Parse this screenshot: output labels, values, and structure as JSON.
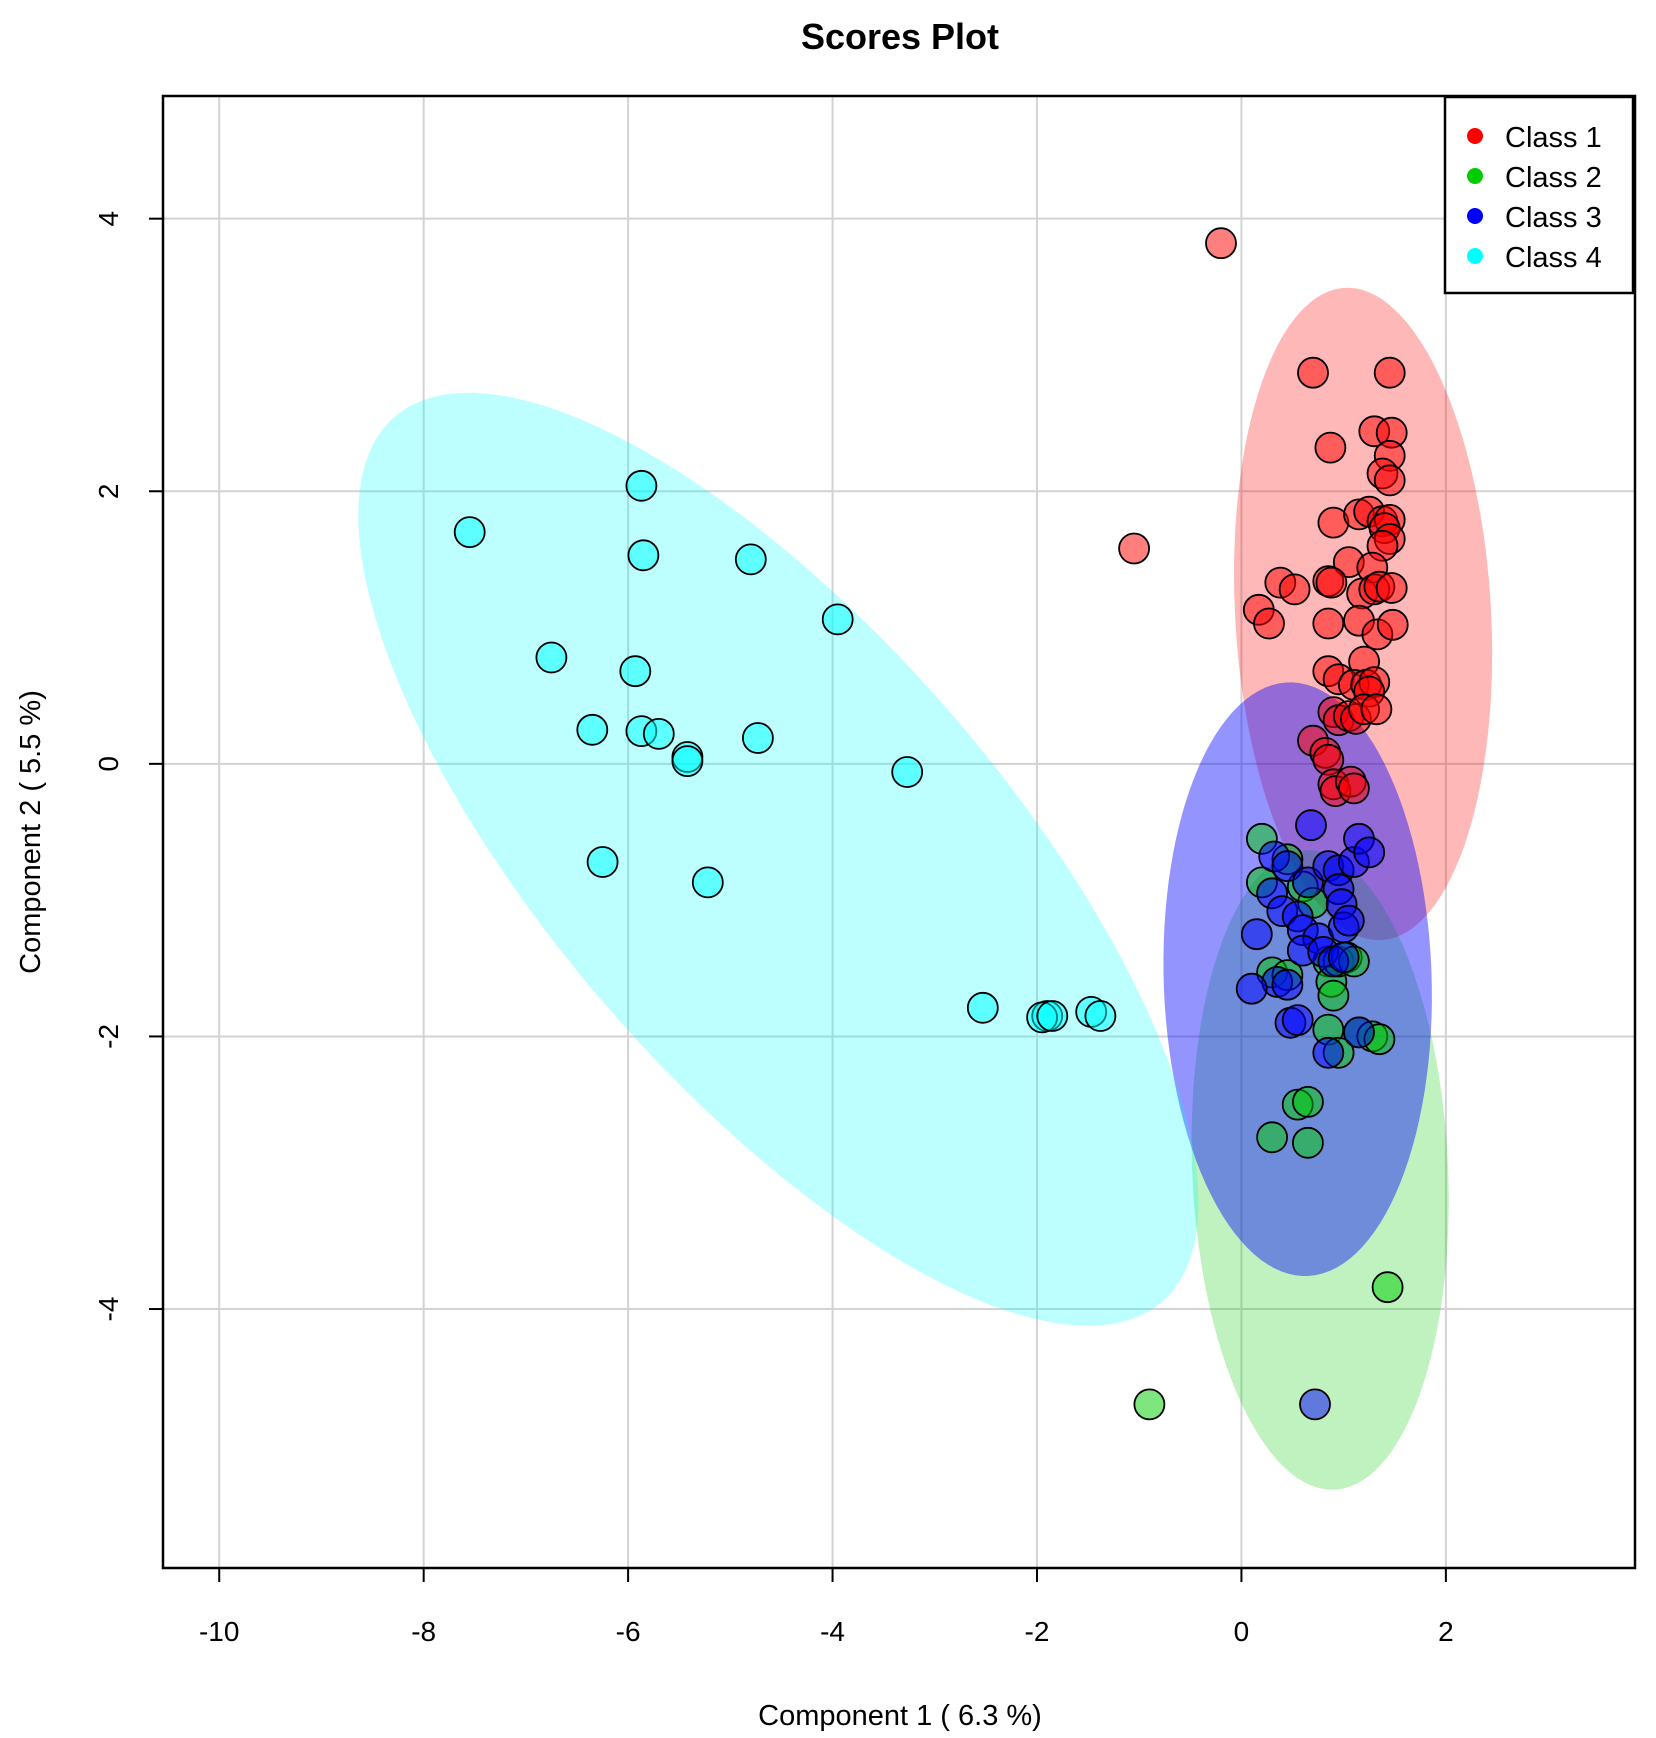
{
  "chart_data": {
    "type": "scatter",
    "title": "Scores Plot",
    "xlabel": "Component 1 ( 6.3 %)",
    "ylabel": "Component 2 ( 5.5 %)",
    "xlim": [
      -10.55,
      3.85
    ],
    "ylim": [
      -5.9,
      4.9
    ],
    "xticks": [
      -10,
      -8,
      -6,
      -4,
      -2,
      0,
      2
    ],
    "xtick_labels": [
      "-10",
      "-8",
      "-6",
      "-4",
      "-2",
      "0",
      "2"
    ],
    "yticks": [
      -4,
      -2,
      0,
      2,
      4
    ],
    "ytick_labels": [
      "-4",
      "-2",
      "0",
      "2",
      "4"
    ],
    "grid": true,
    "legend_position": "top-right",
    "series": [
      {
        "name": "Class 1",
        "color": "#ff0000",
        "ellipse": {
          "cx": 1.19,
          "cy": 1.1,
          "rx": 1.25,
          "ry": 2.4,
          "angle": 5
        },
        "points": [
          [
            -0.2,
            3.82
          ],
          [
            -1.05,
            1.58
          ],
          [
            0.7,
            2.87
          ],
          [
            1.45,
            2.87
          ],
          [
            0.87,
            2.32
          ],
          [
            1.3,
            2.44
          ],
          [
            1.47,
            2.43
          ],
          [
            1.45,
            2.26
          ],
          [
            1.38,
            2.13
          ],
          [
            1.45,
            2.08
          ],
          [
            0.9,
            1.77
          ],
          [
            1.15,
            1.83
          ],
          [
            1.25,
            1.85
          ],
          [
            1.38,
            1.78
          ],
          [
            1.45,
            1.79
          ],
          [
            1.4,
            1.73
          ],
          [
            1.45,
            1.65
          ],
          [
            1.38,
            1.6
          ],
          [
            1.05,
            1.48
          ],
          [
            1.28,
            1.44
          ],
          [
            0.38,
            1.33
          ],
          [
            0.52,
            1.28
          ],
          [
            0.85,
            1.34
          ],
          [
            0.88,
            1.33
          ],
          [
            1.18,
            1.25
          ],
          [
            1.3,
            1.28
          ],
          [
            1.35,
            1.3
          ],
          [
            1.47,
            1.29
          ],
          [
            0.17,
            1.13
          ],
          [
            0.27,
            1.03
          ],
          [
            0.85,
            1.03
          ],
          [
            1.15,
            1.05
          ],
          [
            1.33,
            0.95
          ],
          [
            1.48,
            1.02
          ],
          [
            0.85,
            0.68
          ],
          [
            0.95,
            0.62
          ],
          [
            1.2,
            0.75
          ],
          [
            1.1,
            0.58
          ],
          [
            1.22,
            0.58
          ],
          [
            1.3,
            0.6
          ],
          [
            1.25,
            0.53
          ],
          [
            0.9,
            0.38
          ],
          [
            0.95,
            0.32
          ],
          [
            1.05,
            0.35
          ],
          [
            1.12,
            0.33
          ],
          [
            1.2,
            0.4
          ],
          [
            1.32,
            0.4
          ],
          [
            0.7,
            0.17
          ],
          [
            0.82,
            0.08
          ],
          [
            0.85,
            0.03
          ],
          [
            0.9,
            -0.15
          ],
          [
            0.92,
            -0.2
          ],
          [
            1.07,
            -0.13
          ],
          [
            1.1,
            -0.18
          ]
        ]
      },
      {
        "name": "Class 2",
        "color": "#00cc00",
        "ellipse": {
          "cx": 0.77,
          "cy": -2.98,
          "rx": 1.25,
          "ry": 2.35,
          "angle": 4
        },
        "points": [
          [
            0.2,
            -0.55
          ],
          [
            0.2,
            -0.87
          ],
          [
            0.45,
            -0.7
          ],
          [
            0.6,
            -0.9
          ],
          [
            0.7,
            -1.02
          ],
          [
            0.3,
            -1.53
          ],
          [
            0.45,
            -1.55
          ],
          [
            0.85,
            -1.45
          ],
          [
            0.88,
            -1.6
          ],
          [
            0.9,
            -1.7
          ],
          [
            0.95,
            -1.45
          ],
          [
            1.03,
            -1.42
          ],
          [
            1.1,
            -1.45
          ],
          [
            0.85,
            -1.95
          ],
          [
            1.15,
            -1.97
          ],
          [
            1.28,
            -2.0
          ],
          [
            0.95,
            -2.12
          ],
          [
            1.35,
            -2.02
          ],
          [
            0.55,
            -2.5
          ],
          [
            0.65,
            -2.48
          ],
          [
            0.3,
            -2.74
          ],
          [
            0.65,
            -2.78
          ],
          [
            1.43,
            -3.84
          ],
          [
            -0.9,
            -4.7
          ]
        ]
      },
      {
        "name": "Class 3",
        "color": "#0000ff",
        "ellipse": {
          "cx": 0.55,
          "cy": -1.58,
          "rx": 1.31,
          "ry": 2.18,
          "angle": 3
        },
        "points": [
          [
            0.68,
            -0.45
          ],
          [
            0.32,
            -0.68
          ],
          [
            0.45,
            -0.75
          ],
          [
            0.65,
            -0.87
          ],
          [
            0.85,
            -0.75
          ],
          [
            0.95,
            -0.78
          ],
          [
            1.1,
            -0.72
          ],
          [
            1.15,
            -0.55
          ],
          [
            1.25,
            -0.65
          ],
          [
            0.95,
            -0.92
          ],
          [
            0.98,
            -1.03
          ],
          [
            0.3,
            -0.95
          ],
          [
            0.4,
            -1.08
          ],
          [
            0.55,
            -1.12
          ],
          [
            0.6,
            -1.22
          ],
          [
            0.75,
            -1.28
          ],
          [
            1.0,
            -1.2
          ],
          [
            1.05,
            -1.15
          ],
          [
            0.15,
            -1.25
          ],
          [
            0.6,
            -1.37
          ],
          [
            0.8,
            -1.38
          ],
          [
            0.9,
            -1.45
          ],
          [
            1.0,
            -1.42
          ],
          [
            0.35,
            -1.6
          ],
          [
            0.45,
            -1.62
          ],
          [
            0.1,
            -1.65
          ],
          [
            0.48,
            -1.9
          ],
          [
            0.55,
            -1.88
          ],
          [
            1.15,
            -1.97
          ],
          [
            0.85,
            -2.12
          ],
          [
            0.72,
            -4.7
          ]
        ]
      },
      {
        "name": "Class 4",
        "color": "#00ffff",
        "ellipse": {
          "cx": -4.53,
          "cy": -0.7,
          "rx": 5.0,
          "ry": 1.9,
          "angle": -38
        },
        "points": [
          [
            -7.55,
            1.7
          ],
          [
            -5.87,
            2.04
          ],
          [
            -5.85,
            1.53
          ],
          [
            -4.8,
            1.5
          ],
          [
            -3.95,
            1.06
          ],
          [
            -6.75,
            0.78
          ],
          [
            -5.93,
            0.68
          ],
          [
            -6.35,
            0.25
          ],
          [
            -5.87,
            0.24
          ],
          [
            -5.7,
            0.22
          ],
          [
            -5.42,
            0.05
          ],
          [
            -5.42,
            0.02
          ],
          [
            -4.73,
            0.19
          ],
          [
            -3.27,
            -0.06
          ],
          [
            -6.25,
            -0.72
          ],
          [
            -5.22,
            -0.87
          ],
          [
            -2.53,
            -1.79
          ],
          [
            -1.9,
            -1.85
          ],
          [
            -1.95,
            -1.86
          ],
          [
            -1.85,
            -1.85
          ],
          [
            -1.47,
            -1.82
          ],
          [
            -1.38,
            -1.85
          ]
        ]
      }
    ]
  }
}
